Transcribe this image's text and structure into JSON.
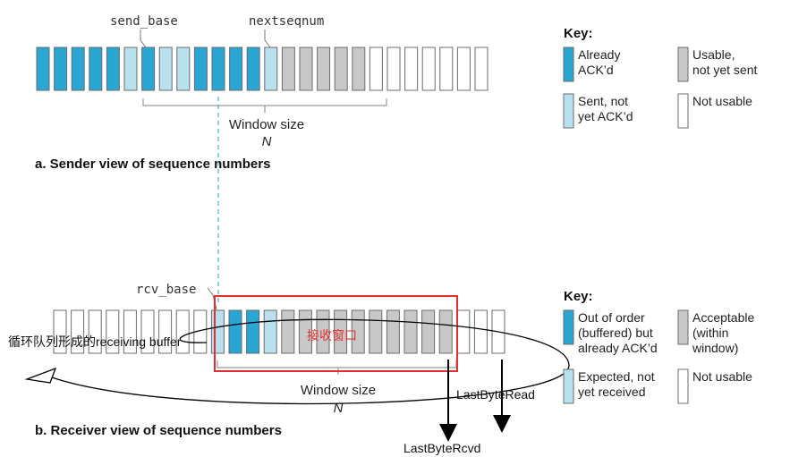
{
  "colors": {
    "acked": "#2aa6d4",
    "sent_not_acked": "#b9e0ef",
    "usable": "#c8c8c8",
    "not_usable": "#ffffff",
    "outline": "#6b6b6b",
    "bracket": "#999999",
    "dashed": "#2aa6d4",
    "red": "#e03030"
  },
  "sender": {
    "send_base_label": "send_base",
    "nextseqnum_label": "nextseqnum",
    "window_label": "Window size",
    "window_n": "N",
    "caption": "a. Sender view of sequence numbers",
    "cells": [
      "acked",
      "acked",
      "acked",
      "acked",
      "acked",
      "sent_not_acked",
      "acked",
      "sent_not_acked",
      "sent_not_acked",
      "acked",
      "acked",
      "acked",
      "acked",
      "sent_not_acked",
      "usable",
      "usable",
      "usable",
      "usable",
      "usable",
      "not_usable",
      "not_usable",
      "not_usable",
      "not_usable",
      "not_usable",
      "not_usable",
      "not_usable"
    ]
  },
  "sender_key": {
    "title": "Key:",
    "items": [
      {
        "state": "acked",
        "label": [
          "Already",
          "ACK’d"
        ]
      },
      {
        "state": "usable",
        "label": [
          "Usable,",
          "not yet sent"
        ]
      },
      {
        "state": "sent_not_acked",
        "label": [
          "Sent, not",
          "yet ACK’d"
        ]
      },
      {
        "state": "not_usable",
        "label": [
          "Not usable"
        ]
      }
    ]
  },
  "receiver": {
    "rcv_base_label": "rcv_base",
    "window_label": "Window size",
    "window_n": "N",
    "caption": "b. Receiver view of sequence numbers",
    "cells": [
      "not_usable",
      "not_usable",
      "not_usable",
      "not_usable",
      "not_usable",
      "not_usable",
      "not_usable",
      "not_usable",
      "not_usable",
      "sent_not_acked",
      "acked",
      "acked",
      "sent_not_acked",
      "usable",
      "usable",
      "usable",
      "usable",
      "usable",
      "usable",
      "usable",
      "usable",
      "usable",
      "usable",
      "not_usable",
      "not_usable",
      "not_usable"
    ]
  },
  "receiver_key": {
    "title": "Key:",
    "items": [
      {
        "state": "acked",
        "label": [
          "Out of order",
          "(buffered) but",
          "already ACK’d"
        ]
      },
      {
        "state": "usable",
        "label": [
          "Acceptable",
          "(within",
          "window)"
        ]
      },
      {
        "state": "sent_not_acked",
        "label": [
          "Expected, not",
          "yet received"
        ]
      },
      {
        "state": "not_usable",
        "label": [
          "Not usable"
        ]
      }
    ]
  },
  "annotations": {
    "receive_window": "接收窗口",
    "circular_buffer": "循环队列形成的receiving buffer",
    "last_byte_read": "LastByteRead",
    "last_byte_rcvd": "LastByteRcvd"
  }
}
